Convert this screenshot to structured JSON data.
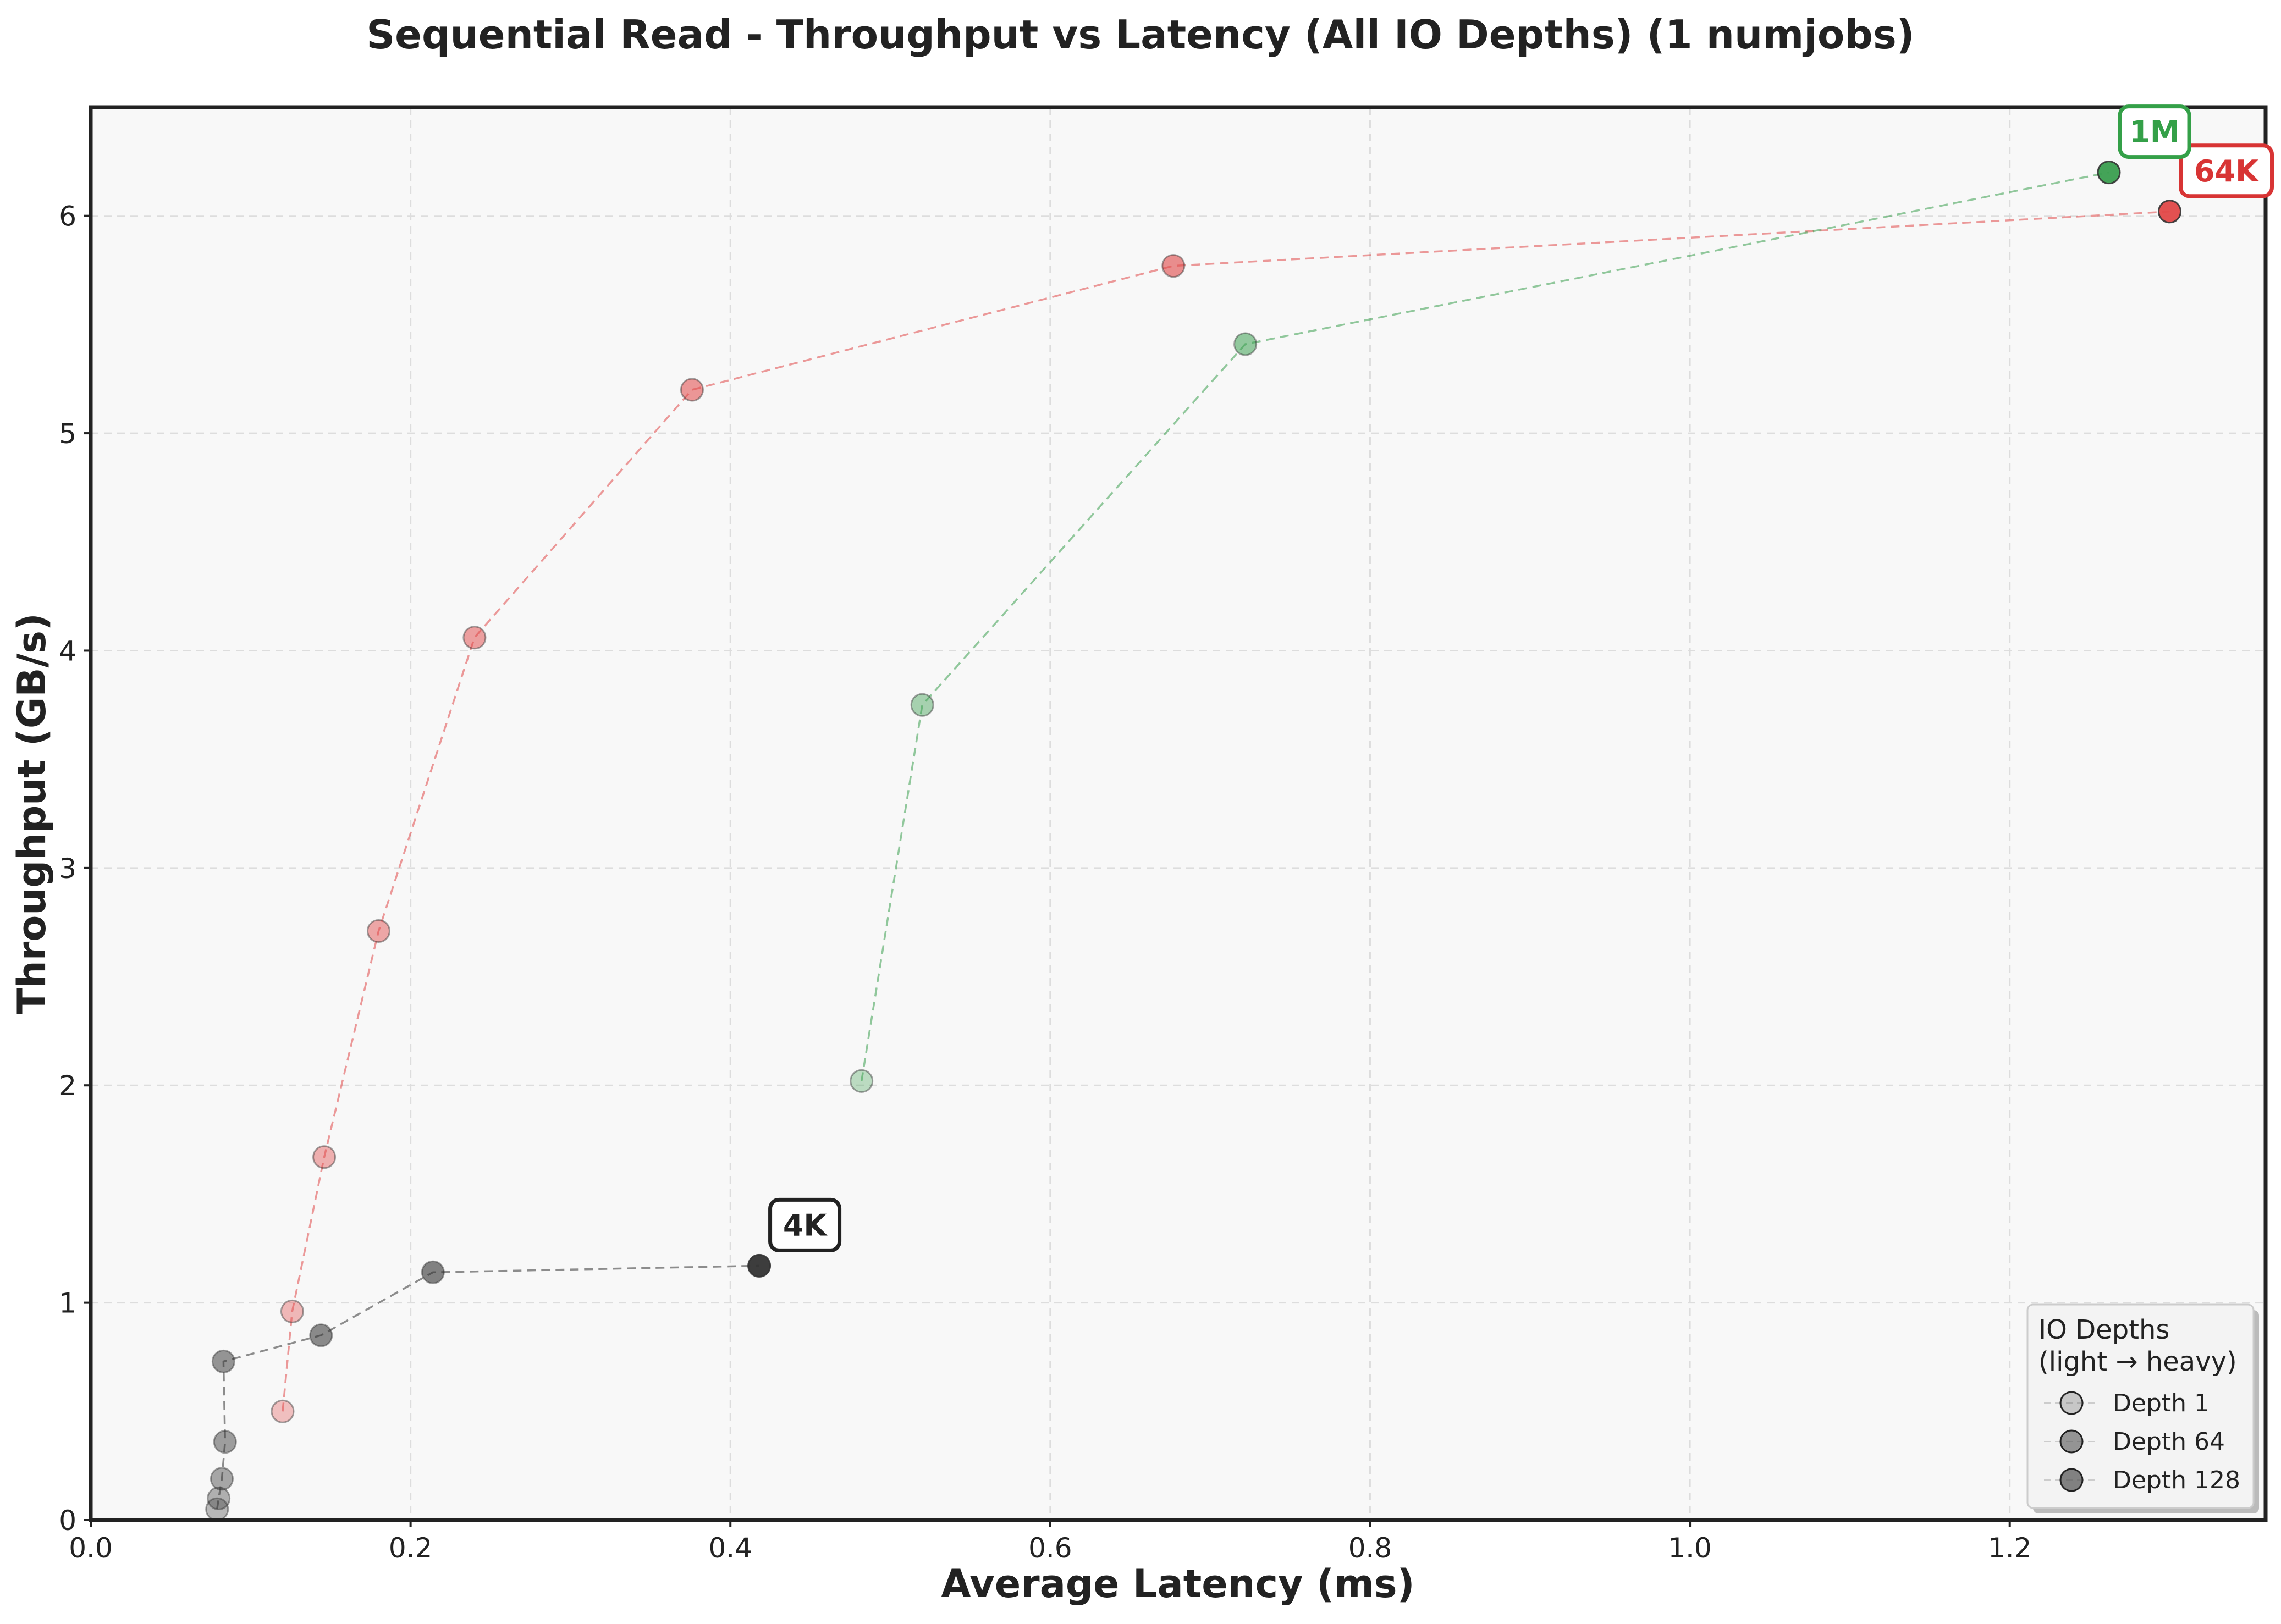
{
  "chart_data": {
    "type": "scatter",
    "title": "Sequential Read - Throughput vs Latency (All IO Depths) (1 numjobs)",
    "xlabel": "Average Latency (ms)",
    "ylabel": "Throughput (GB/s)",
    "xlim": [
      0.0,
      1.36
    ],
    "ylim": [
      0,
      6.5
    ],
    "x_ticks": [
      0.0,
      0.2,
      0.4,
      0.6,
      0.8,
      1.0,
      1.2
    ],
    "x_tick_labels": [
      "0.0",
      "0.2",
      "0.4",
      "0.6",
      "0.8",
      "1.0",
      "1.2"
    ],
    "y_ticks": [
      0,
      1,
      2,
      3,
      4,
      5,
      6
    ],
    "y_tick_labels": [
      "0",
      "1",
      "2",
      "3",
      "4",
      "5",
      "6"
    ],
    "grid": true,
    "line_style": "dashed",
    "series": [
      {
        "name": "4K",
        "color": "#333333",
        "x": [
          0.079,
          0.08,
          0.082,
          0.084,
          0.083,
          0.144,
          0.214,
          0.418
        ],
        "y": [
          0.05,
          0.1,
          0.19,
          0.36,
          0.73,
          0.85,
          1.14,
          1.17
        ]
      },
      {
        "name": "64K",
        "color": "#e04848",
        "x": [
          0.12,
          0.126,
          0.146,
          0.18,
          0.24,
          0.376,
          0.677,
          1.3
        ],
        "y": [
          0.5,
          0.96,
          1.67,
          2.71,
          4.06,
          5.2,
          5.77,
          6.02
        ]
      },
      {
        "name": "1M",
        "color": "#3a9e4f",
        "x": [
          0.482,
          0.52,
          0.722,
          1.262
        ],
        "y": [
          2.02,
          3.75,
          5.41,
          6.2
        ]
      }
    ],
    "callouts": [
      {
        "text": "4K",
        "series": "4K",
        "color": "#222222"
      },
      {
        "text": "64K",
        "series": "64K",
        "color": "#d83434"
      },
      {
        "text": "1M",
        "series": "1M",
        "color": "#34a048"
      }
    ],
    "legend": {
      "title_line1": "IO Depths",
      "title_line2": "(light → heavy)",
      "placement": "lower-right",
      "entries": [
        {
          "label": "Depth 1",
          "alpha": 0.28
        },
        {
          "label": "Depth 64",
          "alpha": 0.6
        },
        {
          "label": "Depth 128",
          "alpha": 0.72
        }
      ]
    },
    "background_color": "#f8f8f8"
  }
}
